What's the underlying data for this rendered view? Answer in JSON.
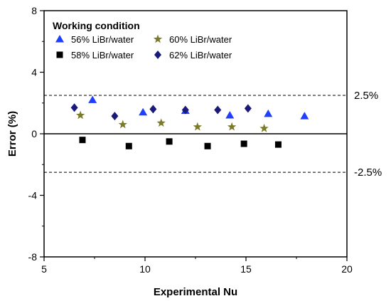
{
  "chart_data": {
    "type": "scatter",
    "xlabel": "Experimental Nu",
    "ylabel": "Error (%)",
    "xlim": [
      5,
      20
    ],
    "ylim": [
      -8,
      8
    ],
    "x_ticks": [
      "5",
      "10",
      "15",
      "20"
    ],
    "y_ticks": [
      "-8",
      "-4",
      "0",
      "4",
      "8"
    ],
    "grid": false,
    "legend": {
      "title": "Working condition",
      "placement": "top-left"
    },
    "series": [
      {
        "name": "56% LiBr/water",
        "marker": "triangle",
        "color": "#1f3fff",
        "points": [
          [
            7.4,
            2.2
          ],
          [
            9.9,
            1.4
          ],
          [
            12.0,
            1.5
          ],
          [
            14.2,
            1.2
          ],
          [
            16.1,
            1.3
          ],
          [
            17.9,
            1.15
          ]
        ]
      },
      {
        "name": "58% LiBr/water",
        "marker": "square",
        "color": "#000000",
        "points": [
          [
            6.9,
            -0.4
          ],
          [
            9.2,
            -0.8
          ],
          [
            11.2,
            -0.5
          ],
          [
            13.1,
            -0.8
          ],
          [
            14.9,
            -0.65
          ],
          [
            16.6,
            -0.7
          ]
        ]
      },
      {
        "name": "60% LiBr/water",
        "marker": "star",
        "color": "#7b7a2a",
        "points": [
          [
            6.8,
            1.2
          ],
          [
            8.9,
            0.6
          ],
          [
            10.8,
            0.7
          ],
          [
            12.6,
            0.45
          ],
          [
            14.3,
            0.45
          ],
          [
            15.9,
            0.35
          ]
        ]
      },
      {
        "name": "62% LiBr/water",
        "marker": "diamond",
        "color": "#1a1a7a",
        "points": [
          [
            6.5,
            1.7
          ],
          [
            8.5,
            1.15
          ],
          [
            10.4,
            1.6
          ],
          [
            12.0,
            1.55
          ],
          [
            13.6,
            1.55
          ],
          [
            15.1,
            1.65
          ]
        ]
      }
    ],
    "reference_lines": [
      {
        "y": 2.5,
        "style": "dashed",
        "label": "2.5%"
      },
      {
        "y": 0,
        "style": "solid",
        "label": ""
      },
      {
        "y": -2.5,
        "style": "dashed",
        "label": "-2.5%"
      }
    ]
  }
}
